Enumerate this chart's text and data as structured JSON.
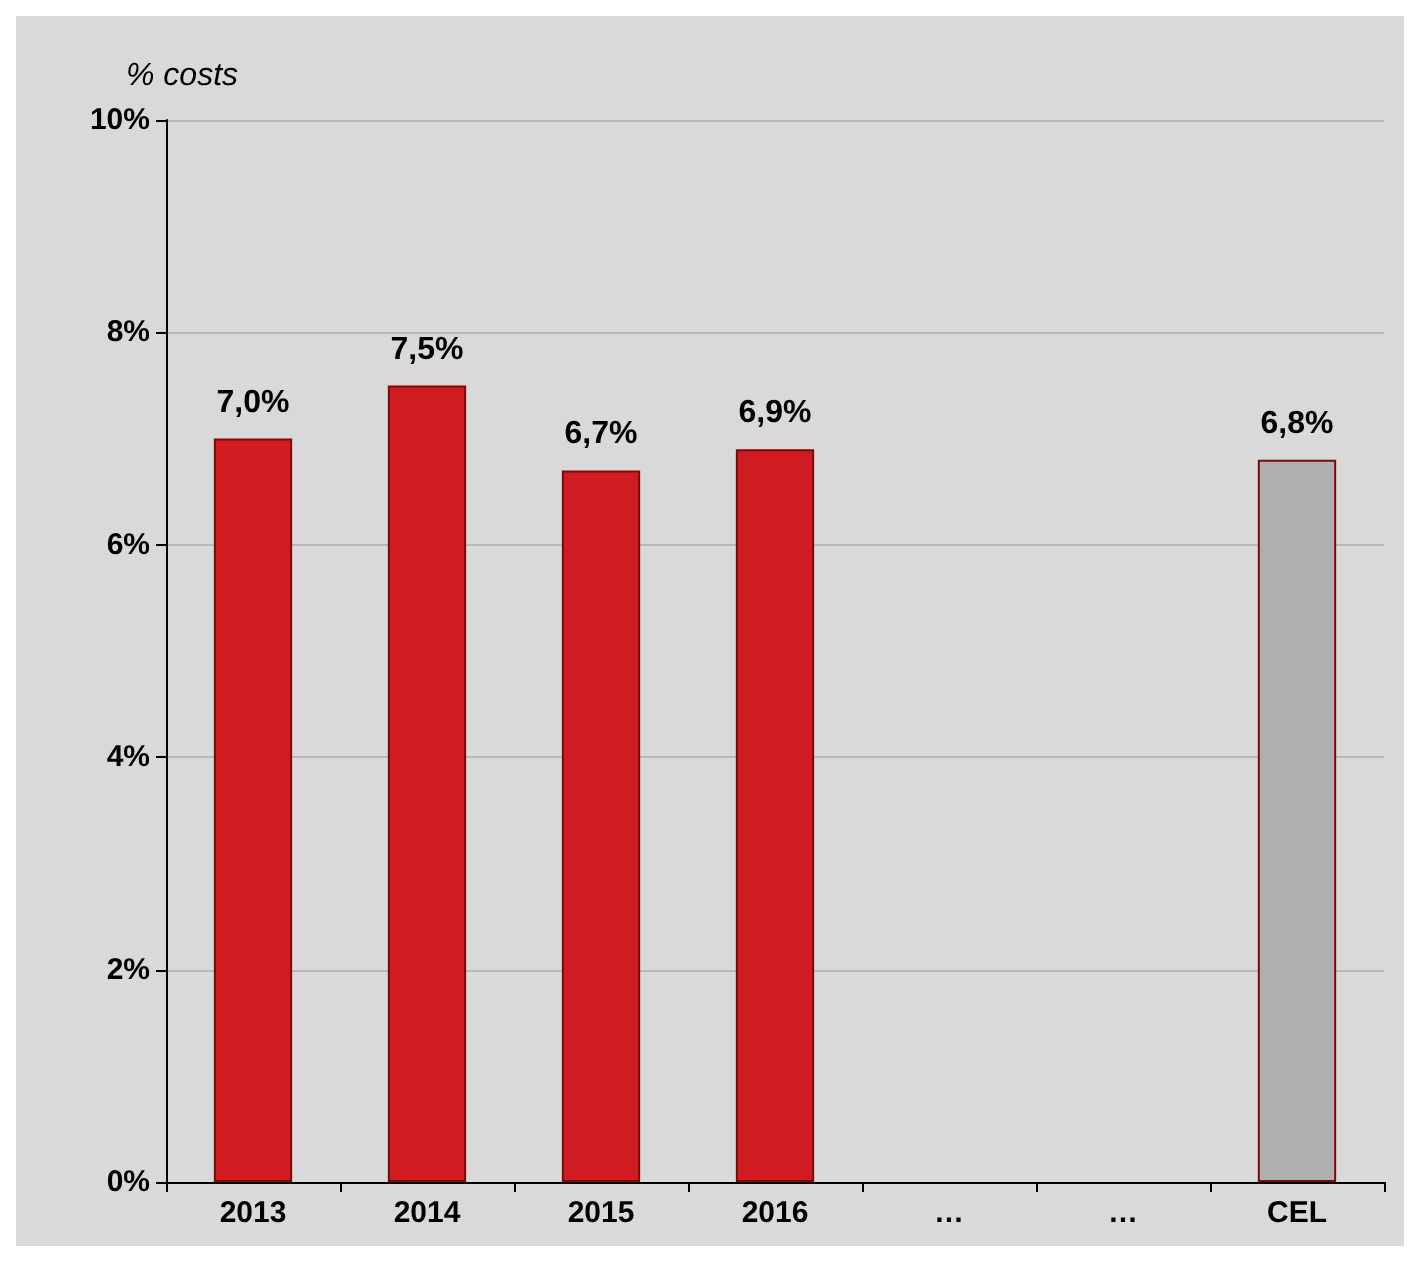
{
  "chart_data": {
    "type": "bar",
    "ylabel": "% costs",
    "categories": [
      "2013",
      "2014",
      "2015",
      "2016",
      "…",
      "…",
      "CEL"
    ],
    "values": [
      7.0,
      7.5,
      6.7,
      6.9,
      null,
      null,
      6.8
    ],
    "colors": [
      "#d01c20",
      "#d01c20",
      "#d01c20",
      "#d01c20",
      "#d01c20",
      "#d01c20",
      "#b0b0b0"
    ],
    "value_labels": [
      "7,0%",
      "7,5%",
      "6,7%",
      "6,9%",
      null,
      null,
      "6,8%"
    ],
    "ylim": [
      0,
      10
    ],
    "yticks": [
      {
        "value": 0,
        "label": "0%"
      },
      {
        "value": 2,
        "label": "2%"
      },
      {
        "value": 4,
        "label": "4%"
      },
      {
        "value": 6,
        "label": "6%"
      },
      {
        "value": 8,
        "label": "8%"
      },
      {
        "value": 10,
        "label": "10%"
      }
    ],
    "grid": "y"
  }
}
